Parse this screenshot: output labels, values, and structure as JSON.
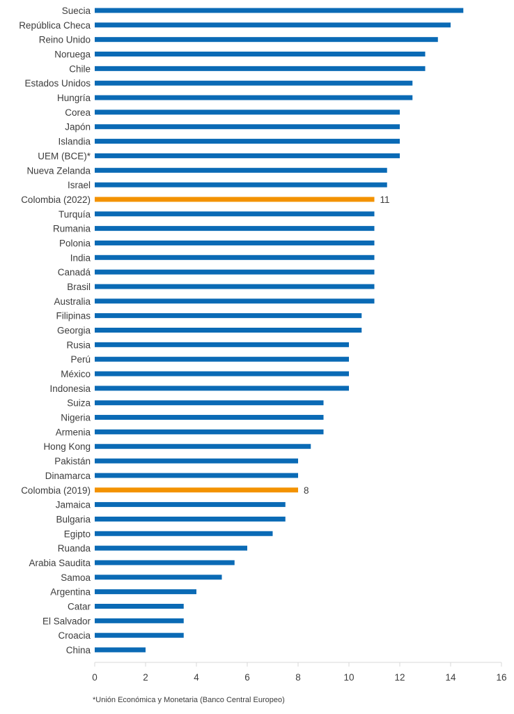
{
  "chart_data": {
    "type": "bar",
    "orientation": "horizontal",
    "title": "",
    "xlabel": "",
    "ylabel": "",
    "xlim": [
      0,
      16
    ],
    "xticks": [
      0,
      2,
      4,
      6,
      8,
      10,
      12,
      14,
      16
    ],
    "grid": false,
    "legend": null,
    "colors": {
      "default": "#0a6ab5",
      "highlight": "#f39200"
    },
    "categories": [
      "Suecia",
      "República Checa",
      "Reino Unido",
      "Noruega",
      "Chile",
      "Estados Unidos",
      "Hungría",
      "Corea",
      "Japón",
      "Islandia",
      "UEM (BCE)*",
      "Nueva Zelanda",
      "Israel",
      "Colombia (2022)",
      "Turquía",
      "Rumania",
      "Polonia",
      "India",
      "Canadá",
      "Brasil",
      "Australia",
      "Filipinas",
      "Georgia",
      "Rusia",
      "Perú",
      "México",
      "Indonesia",
      "Suiza",
      "Nigeria",
      "Armenia",
      "Hong Kong",
      "Pakistán",
      "Dinamarca",
      "Colombia (2019)",
      "Jamaica",
      "Bulgaria",
      "Egipto",
      "Ruanda",
      "Arabia Saudita",
      "Samoa",
      "Argentina",
      "Catar",
      "El Salvador",
      "Croacia",
      "China"
    ],
    "values": [
      14.5,
      14,
      13.5,
      13,
      13,
      12.5,
      12.5,
      12,
      12,
      12,
      12,
      11.5,
      11.5,
      11,
      11,
      11,
      11,
      11,
      11,
      11,
      11,
      10.5,
      10.5,
      10,
      10,
      10,
      10,
      9,
      9,
      9,
      8.5,
      8,
      8,
      8,
      7.5,
      7.5,
      7,
      6,
      5.5,
      5,
      4,
      3.5,
      3.5,
      3.5,
      2
    ],
    "highlighted": [
      "Colombia (2022)",
      "Colombia (2019)"
    ],
    "data_labels": {
      "Colombia (2022)": "11",
      "Colombia (2019)": "8"
    }
  },
  "footnote": "*Unión Económica y Monetaria (Banco Central Europeo)"
}
